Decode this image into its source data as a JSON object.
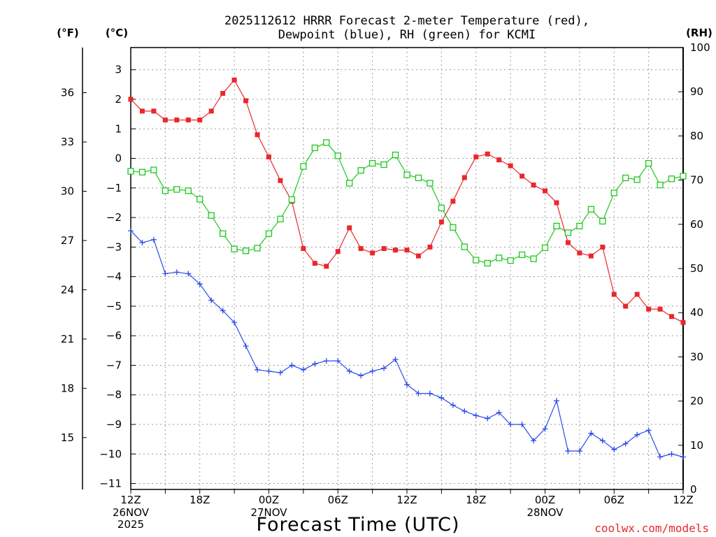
{
  "chart_data": {
    "type": "line",
    "title_line1": "2025112612 HRRR Forecast 2-meter Temperature (red),",
    "title_line2": "Dewpoint (blue), RH (green) for KCMI",
    "xlabel": "Forecast Time (UTC)",
    "credit": "coolwx.com/models",
    "units": {
      "fahrenheit": "(°F)",
      "celsius": "(°C)",
      "rh": "(RH)"
    },
    "x_range_hours": [
      0,
      48
    ],
    "celsius_axis": {
      "ylim": [
        -11.2,
        3.75
      ],
      "ticks": [
        3,
        2,
        1,
        0,
        -1,
        -2,
        -3,
        -4,
        -5,
        -6,
        -7,
        -8,
        -9,
        -10,
        -11
      ],
      "tick_labels": [
        "3",
        "2",
        "1",
        "0",
        "−1",
        "−2",
        "−3",
        "−4",
        "−5",
        "−6",
        "−7",
        "−8",
        "−9",
        "−10",
        "−11"
      ]
    },
    "fahrenheit_axis": {
      "ticks": [
        36,
        33,
        30,
        27,
        24,
        21,
        18,
        15
      ],
      "tick_labels": [
        "36",
        "33",
        "30",
        "27",
        "24",
        "21",
        "18",
        "15"
      ]
    },
    "rh_axis": {
      "ylim": [
        0,
        100
      ],
      "ticks": [
        100,
        90,
        80,
        70,
        60,
        50,
        40,
        30,
        20,
        10,
        0
      ],
      "tick_labels": [
        "100",
        "90",
        "80",
        "70",
        "60",
        "50",
        "40",
        "30",
        "20",
        "10",
        "0"
      ]
    },
    "x_ticks": [
      {
        "hour": 0,
        "label": "12Z",
        "date": "26NOV",
        "year": "2025"
      },
      {
        "hour": 6,
        "label": "18Z",
        "date": "",
        "year": ""
      },
      {
        "hour": 12,
        "label": "00Z",
        "date": "27NOV",
        "year": ""
      },
      {
        "hour": 18,
        "label": "06Z",
        "date": "",
        "year": ""
      },
      {
        "hour": 24,
        "label": "12Z",
        "date": "",
        "year": ""
      },
      {
        "hour": 30,
        "label": "18Z",
        "date": "",
        "year": ""
      },
      {
        "hour": 36,
        "label": "00Z",
        "date": "28NOV",
        "year": ""
      },
      {
        "hour": 42,
        "label": "06Z",
        "date": "",
        "year": ""
      },
      {
        "hour": 48,
        "label": "12Z",
        "date": "",
        "year": ""
      }
    ],
    "series": [
      {
        "name": "Temperature",
        "unit": "C",
        "color": "#e8282d",
        "marker": "filled-square",
        "values": [
          2.0,
          1.6,
          1.6,
          1.3,
          1.3,
          1.3,
          1.3,
          1.6,
          2.2,
          2.65,
          1.95,
          0.8,
          0.05,
          -0.75,
          -1.45,
          -3.05,
          -3.55,
          -3.65,
          -3.15,
          -2.35,
          -3.05,
          -3.2,
          -3.05,
          -3.1,
          -3.1,
          -3.3,
          -3.0,
          -2.15,
          -1.45,
          -0.65,
          0.05,
          0.15,
          -0.05,
          -0.25,
          -0.6,
          -0.9,
          -1.1,
          -1.5,
          -2.85,
          -3.2,
          -3.3,
          -3.0,
          -4.6,
          -5.0,
          -4.6,
          -5.1,
          -5.1,
          -5.35,
          -5.55
        ]
      },
      {
        "name": "Dewpoint",
        "unit": "C",
        "color": "#2a4be8",
        "marker": "plus",
        "values": [
          -2.45,
          -2.85,
          -2.75,
          -3.9,
          -3.85,
          -3.9,
          -4.25,
          -4.8,
          -5.15,
          -5.55,
          -6.35,
          -7.15,
          -7.2,
          -7.25,
          -7.0,
          -7.15,
          -6.95,
          -6.85,
          -6.85,
          -7.2,
          -7.35,
          -7.2,
          -7.1,
          -6.8,
          -7.65,
          -7.95,
          -7.95,
          -8.1,
          -8.35,
          -8.55,
          -8.7,
          -8.8,
          -8.6,
          -9.0,
          -9.0,
          -9.55,
          -9.15,
          -8.2,
          -9.9,
          -9.9,
          -9.3,
          -9.55,
          -9.85,
          -9.65,
          -9.35,
          -9.2,
          -10.1,
          -10.0,
          -10.1
        ]
      },
      {
        "name": "RH",
        "unit": "%",
        "color": "#1ec81e",
        "marker": "open-square",
        "values": [
          72,
          71.8,
          72.3,
          67.6,
          67.9,
          67.6,
          65.7,
          62,
          57.9,
          54.4,
          54,
          54.6,
          57.9,
          61.2,
          65.6,
          73.1,
          77.3,
          78.5,
          75.5,
          69.3,
          72.2,
          73.8,
          73.5,
          75.7,
          71.2,
          70.5,
          69.3,
          63.7,
          59.3,
          54.9,
          51.9,
          51.2,
          52.4,
          51.8,
          53.1,
          52.2,
          54.7,
          59.6,
          58.1,
          59.6,
          63.4,
          60.7,
          67.1,
          70.5,
          70.1,
          73.8,
          68.9,
          70.3,
          70.9
        ]
      }
    ]
  }
}
